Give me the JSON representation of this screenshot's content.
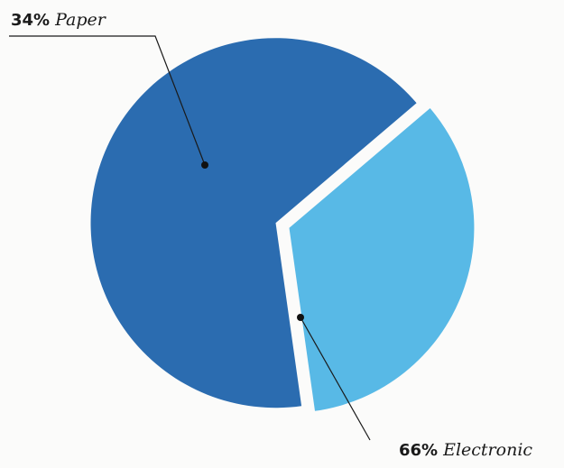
{
  "chart_data": {
    "type": "pie",
    "slices": [
      {
        "label": "Paper",
        "value": 34,
        "value_label": "34%",
        "color": "#58b9e6"
      },
      {
        "label": "Electronic",
        "value": 66,
        "value_label": "66%",
        "color": "#2b6cb0"
      }
    ],
    "title": "",
    "legend": "none",
    "background": "#fbfbfa"
  }
}
